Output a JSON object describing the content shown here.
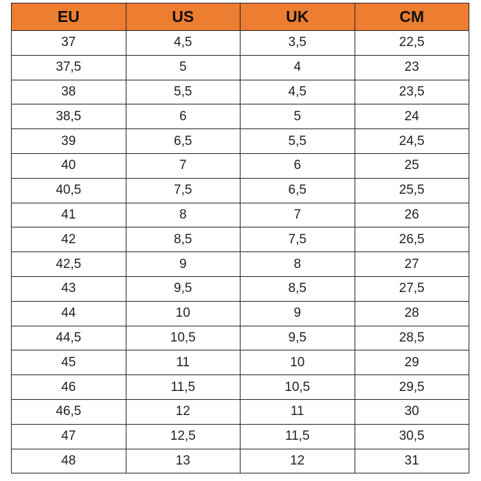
{
  "table": {
    "header": [
      "EU",
      "US",
      "UK",
      "CM"
    ],
    "rows": [
      [
        "37",
        "4,5",
        "3,5",
        "22,5"
      ],
      [
        "37,5",
        "5",
        "4",
        "23"
      ],
      [
        "38",
        "5,5",
        "4,5",
        "23,5"
      ],
      [
        "38,5",
        "6",
        "5",
        "24"
      ],
      [
        "39",
        "6,5",
        "5,5",
        "24,5"
      ],
      [
        "40",
        "7",
        "6",
        "25"
      ],
      [
        "40,5",
        "7,5",
        "6,5",
        "25,5"
      ],
      [
        "41",
        "8",
        "7",
        "26"
      ],
      [
        "42",
        "8,5",
        "7,5",
        "26,5"
      ],
      [
        "42,5",
        "9",
        "8",
        "27"
      ],
      [
        "43",
        "9,5",
        "8,5",
        "27,5"
      ],
      [
        "44",
        "10",
        "9",
        "28"
      ],
      [
        "44,5",
        "10,5",
        "9,5",
        "28,5"
      ],
      [
        "45",
        "11",
        "10",
        "29"
      ],
      [
        "46",
        "11,5",
        "10,5",
        "29,5"
      ],
      [
        "46,5",
        "12",
        "11",
        "30"
      ],
      [
        "47",
        "12,5",
        "11,5",
        "30,5"
      ],
      [
        "48",
        "13",
        "12",
        "31"
      ]
    ]
  }
}
